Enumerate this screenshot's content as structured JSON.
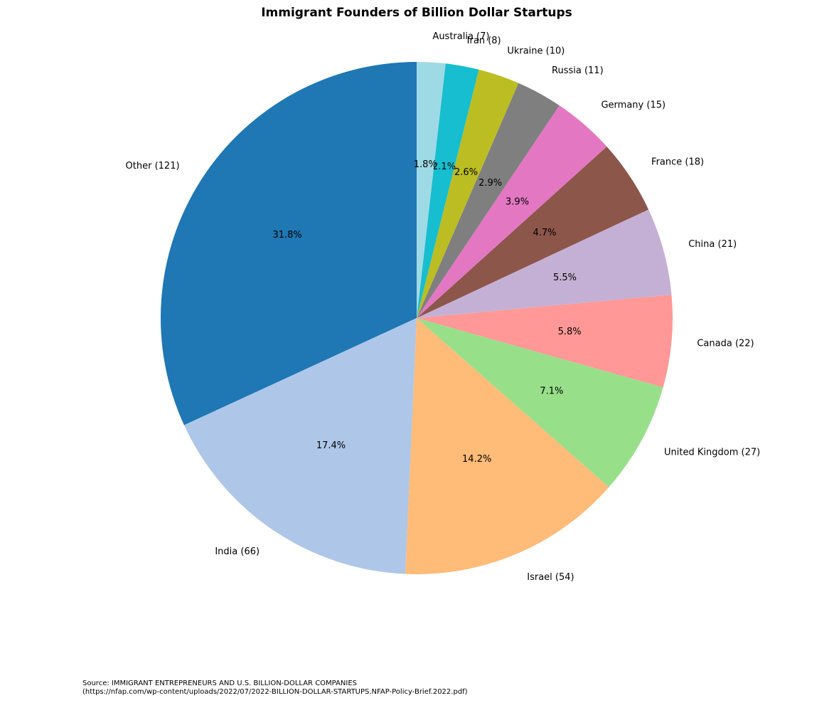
{
  "chart_data": {
    "type": "pie",
    "title": "Immigrant Founders of Billion Dollar Startups",
    "categories": [
      "Other (121)",
      "India (66)",
      "Israel (54)",
      "United Kingdom (27)",
      "Canada (22)",
      "China (21)",
      "France (18)",
      "Germany (15)",
      "Russia (11)",
      "Ukraine (10)",
      "Iran (8)",
      "Australia (7)"
    ],
    "values": [
      31.8,
      17.4,
      14.2,
      7.1,
      5.8,
      5.5,
      4.7,
      3.9,
      2.9,
      2.6,
      2.1,
      1.8
    ],
    "value_labels": [
      "31.8%",
      "17.4%",
      "14.2%",
      "7.1%",
      "5.8%",
      "5.5%",
      "4.7%",
      "3.9%",
      "2.9%",
      "2.6%",
      "2.1%",
      "1.8%"
    ],
    "colors": [
      "#1f77b4",
      "#aec7e8",
      "#ffbb78",
      "#98df8a",
      "#ff9896",
      "#c5b0d5",
      "#8c564b",
      "#e377c2",
      "#7f7f7f",
      "#bcbd22",
      "#17becf",
      "#9edae5"
    ],
    "source": [
      "Source: IMMIGRANT ENTREPRENEURS AND U.S. BILLION-DOLLAR COMPANIES",
      "(https://nfap.com/wp-content/uploads/2022/07/2022-BILLION-DOLLAR-STARTUPS.NFAP-Policy-Brief.2022.pdf)"
    ]
  }
}
